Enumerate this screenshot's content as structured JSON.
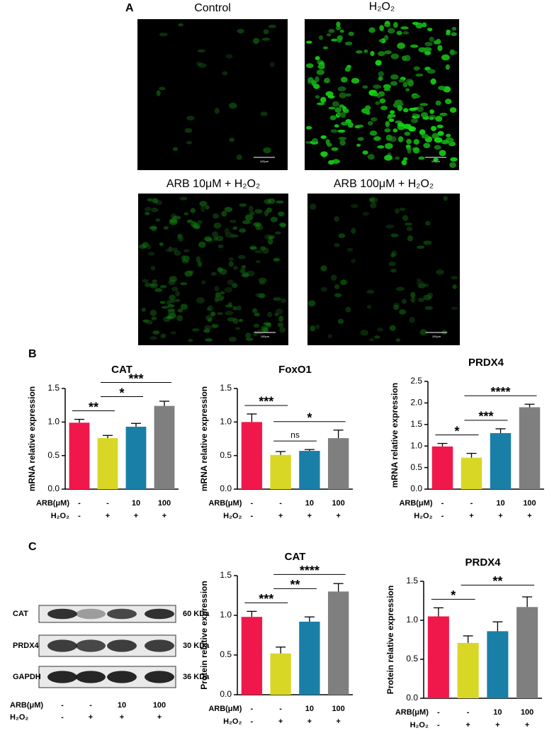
{
  "panel_labels": [
    "A",
    "B",
    "C"
  ],
  "micrographs": [
    {
      "caption": "Control",
      "scale_label": "100μm"
    },
    {
      "caption": "H₂O₂",
      "scale_label": "100μm"
    },
    {
      "caption": "ARB 10μM + H₂O₂",
      "scale_label": "100μm"
    },
    {
      "caption": "ARB 100μM + H₂O₂",
      "scale_label": "100μm"
    }
  ],
  "western_blot": {
    "rows": [
      {
        "label": "CAT",
        "size": "60 KDa"
      },
      {
        "label": "PRDX4",
        "size": "30 KDa"
      },
      {
        "label": "GAPDH",
        "size": "36 KDa"
      }
    ],
    "conditions": [
      {
        "label": "ARB(μM)",
        "values": [
          "-",
          "-",
          "10",
          "100"
        ]
      },
      {
        "label": "H₂O₂",
        "values": [
          "-",
          "+",
          "+",
          "+"
        ]
      }
    ]
  },
  "chart_data": [
    {
      "type": "bar",
      "title": "CAT",
      "y_label": "mRNA relative expression",
      "values": [
        0.99,
        0.76,
        0.93,
        1.24
      ],
      "errors": [
        0.05,
        0.04,
        0.05,
        0.07
      ],
      "colors": [
        "#f0184a",
        "#d9d726",
        "#1a7fa7",
        "#7f7f7f"
      ],
      "ylim": [
        0,
        1.5
      ],
      "yticks": [
        {
          "value": 0,
          "label": "0.0"
        },
        0.5,
        {
          "value": 1,
          "label": "1.0"
        },
        1.5
      ],
      "conditions": [
        {
          "label": "ARB(μM)",
          "values": [
            "-",
            "-",
            "10",
            "100"
          ]
        },
        {
          "label": "H₂O₂",
          "values": [
            "-",
            "+",
            "+",
            "+"
          ]
        }
      ],
      "significance": [
        {
          "between": [
            0,
            1
          ],
          "label": "**"
        },
        {
          "between": [
            1,
            2
          ],
          "label": "*"
        },
        {
          "between": [
            1,
            3
          ],
          "label": "***"
        }
      ]
    },
    {
      "type": "bar",
      "title": "FoxO1",
      "y_label": "mRNA relative expression",
      "values": [
        1.0,
        0.51,
        0.57,
        0.76
      ],
      "errors": [
        0.12,
        0.05,
        0.02,
        0.12
      ],
      "colors": [
        "#f0184a",
        "#d9d726",
        "#1a7fa7",
        "#7f7f7f"
      ],
      "ylim": [
        0,
        1.5
      ],
      "yticks": [
        {
          "value": 0,
          "label": "0.0"
        },
        0.5,
        {
          "value": 1,
          "label": "1.0"
        },
        1.5
      ],
      "conditions": [
        {
          "label": "ARB(μM)",
          "values": [
            "-",
            "-",
            "10",
            "100"
          ]
        },
        {
          "label": "H₂O₂",
          "values": [
            "-",
            "+",
            "+",
            "+"
          ]
        }
      ],
      "significance": [
        {
          "between": [
            0,
            1
          ],
          "label": "***"
        },
        {
          "between": [
            1,
            2
          ],
          "label": "ns"
        },
        {
          "between": [
            1,
            3
          ],
          "label": "*"
        }
      ]
    },
    {
      "type": "bar",
      "title": "PRDX4",
      "y_label": "mRNA relative expression",
      "values": [
        0.99,
        0.73,
        1.3,
        1.9
      ],
      "errors": [
        0.07,
        0.1,
        0.1,
        0.07
      ],
      "colors": [
        "#f0184a",
        "#d9d726",
        "#1a7fa7",
        "#7f7f7f"
      ],
      "ylim": [
        0,
        2.5
      ],
      "yticks": [
        {
          "value": 0,
          "label": "0.0"
        },
        0.5,
        {
          "value": 1,
          "label": "1.0"
        },
        1.5,
        {
          "value": 2,
          "label": "2.0"
        },
        2.5
      ],
      "conditions": [
        {
          "label": "ARB(μM)",
          "values": [
            "-",
            "-",
            "10",
            "100"
          ]
        },
        {
          "label": "H₂O₂",
          "values": [
            "-",
            "+",
            "+",
            "+"
          ]
        }
      ],
      "significance": [
        {
          "between": [
            0,
            1
          ],
          "label": "*"
        },
        {
          "between": [
            1,
            2
          ],
          "label": "***"
        },
        {
          "between": [
            1,
            3
          ],
          "label": "****"
        }
      ]
    },
    {
      "type": "bar",
      "title": "CAT",
      "y_label": "Protein relative expression",
      "values": [
        0.98,
        0.52,
        0.92,
        1.3
      ],
      "errors": [
        0.07,
        0.08,
        0.06,
        0.1
      ],
      "colors": [
        "#f0184a",
        "#d9d726",
        "#1a7fa7",
        "#7f7f7f"
      ],
      "ylim": [
        0,
        1.5
      ],
      "yticks": [
        {
          "value": 0,
          "label": "0.0"
        },
        0.5,
        {
          "value": 1,
          "label": "1.0"
        },
        1.5
      ],
      "conditions": [
        {
          "label": "ARB(μM)",
          "values": [
            "-",
            "-",
            "10",
            "100"
          ]
        },
        {
          "label": "H₂O₂",
          "values": [
            "-",
            "+",
            "+",
            "+"
          ]
        }
      ],
      "significance": [
        {
          "between": [
            0,
            1
          ],
          "label": "***"
        },
        {
          "between": [
            1,
            2
          ],
          "label": "**"
        },
        {
          "between": [
            1,
            3
          ],
          "label": "****"
        }
      ]
    },
    {
      "type": "bar",
      "title": "PRDX4",
      "y_label": "Protein relative expression",
      "values": [
        1.05,
        0.71,
        0.86,
        1.17
      ],
      "errors": [
        0.11,
        0.09,
        0.12,
        0.13
      ],
      "colors": [
        "#f0184a",
        "#d9d726",
        "#1a7fa7",
        "#7f7f7f"
      ],
      "ylim": [
        0,
        1.5
      ],
      "yticks": [
        {
          "value": 0,
          "label": "0.0"
        },
        0.5,
        {
          "value": 1,
          "label": "1.0"
        },
        1.5
      ],
      "conditions": [
        {
          "label": "ARB(μM)",
          "values": [
            "-",
            "-",
            "10",
            "100"
          ]
        },
        {
          "label": "H₂O₂",
          "values": [
            "-",
            "+",
            "+",
            "+"
          ]
        }
      ],
      "significance": [
        {
          "between": [
            0,
            1
          ],
          "label": "*"
        },
        {
          "between": [
            1,
            3
          ],
          "label": "**"
        }
      ]
    }
  ]
}
